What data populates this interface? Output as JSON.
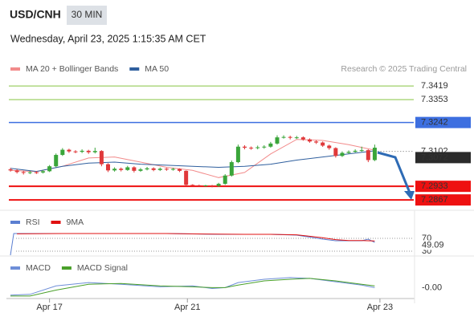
{
  "header": {
    "symbol": "USD/CNH",
    "interval": "30 MIN",
    "datetime": "Wednesday, April 23, 2025 1:15:35 AM CET"
  },
  "chart_data": [
    {
      "type": "candlestick",
      "credit": "Research © 2025 Trading Central",
      "up_color": "#3aa53a",
      "down_color": "#e0383a",
      "xlim": [
        -0.5,
        62
      ],
      "ylim": [
        7.2817,
        7.3466
      ],
      "open": [
        7.3015,
        7.301,
        7.3002,
        7.2998,
        7.3001,
        7.3,
        7.3006,
        7.303,
        7.3085,
        7.311,
        7.3102,
        7.31,
        7.3105,
        7.3098,
        7.3104,
        7.304,
        7.301,
        7.3018,
        7.3012,
        7.3025,
        7.3008,
        7.3015,
        7.302,
        7.3012,
        7.3018,
        7.3014,
        7.3017,
        7.3008,
        7.294,
        7.2938,
        7.2936,
        7.2937,
        7.2935,
        7.2945,
        7.2985,
        7.305,
        7.3125,
        7.312,
        7.3118,
        7.3122,
        7.3125,
        7.314,
        7.317,
        7.3172,
        7.3168,
        7.317,
        7.316,
        7.315,
        7.3145,
        7.313,
        7.3118,
        7.308,
        7.3095,
        7.31,
        7.3105,
        7.3108,
        7.306
      ],
      "high": [
        7.3022,
        7.3016,
        7.3008,
        7.3008,
        7.3007,
        7.3012,
        7.3036,
        7.3092,
        7.3118,
        7.3115,
        7.3108,
        7.3112,
        7.311,
        7.312,
        7.3108,
        7.3045,
        7.3025,
        7.3024,
        7.3032,
        7.303,
        7.3022,
        7.3027,
        7.3025,
        7.3024,
        7.3022,
        7.3023,
        7.302,
        7.301,
        7.2943,
        7.2941,
        7.294,
        7.294,
        7.295,
        7.2992,
        7.3058,
        7.3135,
        7.3132,
        7.3126,
        7.313,
        7.3132,
        7.3148,
        7.318,
        7.318,
        7.3178,
        7.3177,
        7.3175,
        7.3165,
        7.3156,
        7.315,
        7.3135,
        7.3122,
        7.3102,
        7.3107,
        7.3112,
        7.3125,
        7.3112,
        7.3135
      ],
      "low": [
        7.3004,
        7.2995,
        7.299,
        7.2992,
        7.2993,
        7.2995,
        7.3002,
        7.3025,
        7.308,
        7.3095,
        7.3093,
        7.3094,
        7.309,
        7.3092,
        7.303,
        7.3002,
        7.3004,
        7.3005,
        7.3008,
        7.3,
        7.3003,
        7.301,
        7.3006,
        7.3007,
        7.3008,
        7.3009,
        7.3002,
        7.2935,
        7.2935,
        7.2933,
        7.2933,
        7.2928,
        7.293,
        7.294,
        7.298,
        7.3045,
        7.3112,
        7.311,
        7.3112,
        7.3115,
        7.312,
        7.3135,
        7.3164,
        7.316,
        7.3162,
        7.3154,
        7.3144,
        7.3138,
        7.3124,
        7.311,
        7.3072,
        7.3075,
        7.309,
        7.3096,
        7.31,
        7.305,
        7.3055
      ],
      "close": [
        7.301,
        7.3002,
        7.2998,
        7.3001,
        7.3,
        7.3006,
        7.303,
        7.3085,
        7.311,
        7.3102,
        7.31,
        7.3105,
        7.3098,
        7.3104,
        7.304,
        7.301,
        7.3018,
        7.3012,
        7.3025,
        7.3008,
        7.3015,
        7.302,
        7.3012,
        7.3018,
        7.3014,
        7.3017,
        7.3008,
        7.294,
        7.2938,
        7.2936,
        7.2937,
        7.2935,
        7.2945,
        7.2985,
        7.305,
        7.3125,
        7.312,
        7.3118,
        7.3122,
        7.3125,
        7.314,
        7.317,
        7.3172,
        7.3168,
        7.317,
        7.316,
        7.315,
        7.3145,
        7.313,
        7.3118,
        7.308,
        7.3095,
        7.31,
        7.3105,
        7.3108,
        7.306,
        7.312
      ],
      "series": [
        {
          "name": "MA 20 + Bollinger Bands",
          "color": "#f28b8b",
          "x": [
            0,
            4,
            8,
            12,
            16,
            20,
            24,
            28,
            32,
            36,
            40,
            44,
            48,
            52,
            56
          ],
          "values": [
            7.301,
            7.3004,
            7.303,
            7.307,
            7.3075,
            7.305,
            7.3025,
            7.301,
            7.2975,
            7.3,
            7.309,
            7.316,
            7.3155,
            7.3135,
            7.3108
          ]
        },
        {
          "name": "MA 50",
          "color": "#2f5f9e",
          "x": [
            0,
            4,
            8,
            12,
            16,
            20,
            24,
            28,
            32,
            36,
            40,
            44,
            48,
            52,
            56
          ],
          "values": [
            7.302,
            7.3005,
            7.303,
            7.3045,
            7.305,
            7.304,
            7.3035,
            7.303,
            7.3025,
            7.303,
            7.304,
            7.306,
            7.3075,
            7.309,
            7.3105
          ]
        }
      ],
      "levels": [
        {
          "value": 7.3419,
          "color": "#86c440",
          "style": "text",
          "line": "solid",
          "width": 1
        },
        {
          "value": 7.3353,
          "color": "#86c440",
          "style": "text",
          "line": "solid",
          "width": 1
        },
        {
          "value": 7.3242,
          "color": "#3d6fe0",
          "style": "box",
          "line": "solid",
          "width": 1.5
        },
        {
          "value": 7.3102,
          "color": "#666666",
          "style": "text",
          "line": "dotted",
          "width": 1
        },
        {
          "value": 7.3072,
          "color": "#2b2b2b",
          "style": "box",
          "line": "none",
          "width": 1
        },
        {
          "value": 7.2933,
          "color": "#ee1111",
          "style": "box",
          "line": "solid",
          "width": 2
        },
        {
          "value": 7.2867,
          "color": "#ee1111",
          "style": "box",
          "line": "solid",
          "width": 2
        }
      ]
    },
    {
      "type": "line",
      "xlim": [
        -0.5,
        62
      ],
      "ylim": [
        17.5,
        137.5
      ],
      "yticks": [
        30,
        70
      ],
      "series": [
        {
          "name": "RSI",
          "color": "#5b7fd1",
          "x": [
            0,
            0.5,
            8,
            16,
            24,
            32,
            36,
            40,
            44,
            48,
            50,
            52,
            54,
            55,
            56
          ],
          "values": [
            17.5,
            85,
            85,
            85,
            85,
            82.5,
            82.5,
            82.5,
            80,
            67.5,
            62.5,
            62.5,
            62.5,
            67.5,
            57.5
          ]
        },
        {
          "name": "9MA",
          "color": "#e01010",
          "x": [
            1,
            8,
            16,
            24,
            32,
            36,
            40,
            44,
            48,
            50,
            52,
            54,
            56
          ],
          "values": [
            84,
            85,
            85,
            85,
            83,
            82.5,
            82.5,
            81,
            72,
            66,
            63,
            63,
            62
          ]
        }
      ],
      "current": 49.09,
      "current_color": "#5b7fd1"
    },
    {
      "type": "line",
      "xlim": [
        -0.5,
        62
      ],
      "ylim": [
        -0.0014,
        0.003
      ],
      "series": [
        {
          "name": "MACD",
          "color": "#6e8ed8",
          "x": [
            0,
            3,
            7,
            12,
            17,
            23,
            28,
            31,
            33,
            35,
            39,
            43,
            46,
            50,
            54,
            56
          ],
          "values": [
            -0.001,
            -0.0009,
            0.0001,
            0.0005,
            0.0003,
            0,
            0.0001,
            -0.0002,
            -0.0001,
            0.0005,
            0.0009,
            0.0011,
            0.001,
            0.0006,
            0.0002,
            -0.0001
          ]
        },
        {
          "name": "MACD Signal",
          "color": "#4aa02a",
          "x": [
            0,
            3,
            7,
            12,
            17,
            23,
            28,
            31,
            33,
            35,
            39,
            43,
            46,
            50,
            54,
            56
          ],
          "values": [
            -0.0011,
            -0.0011,
            -0.0004,
            0.0003,
            0.0004,
            0.0001,
            0,
            -0.0001,
            -0.0001,
            0.0002,
            0.0007,
            0.0009,
            0.001,
            0.0007,
            0.0003,
            0.0001
          ]
        }
      ],
      "current": {
        "value": -0.0001,
        "label": "-0.00"
      },
      "current_color": "#6e8ed8",
      "xticks": [
        {
          "value": 6,
          "label": "Apr 17"
        },
        {
          "value": 27.2,
          "label": "Apr 21"
        },
        {
          "value": 56.8,
          "label": "Apr 23"
        }
      ]
    }
  ]
}
